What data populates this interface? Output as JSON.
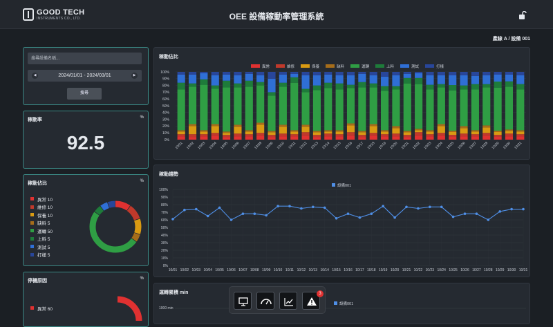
{
  "header": {
    "logo_title": "GOOD TECH",
    "logo_sub": "INSTRUMENTS CO., LTD.",
    "title": "OEE 設備稼動率管理系統"
  },
  "breadcrumb": "產線 A / 設備 001",
  "filter": {
    "search_placeholder": "搜尋設備名稱...",
    "date_range": "2024/01/01 - 2024/03/01",
    "search_button": "搜尋",
    "prev_icon": "chevron-left-icon",
    "next_icon": "chevron-right-icon"
  },
  "rate_panel": {
    "title": "稼動率",
    "unit": "%",
    "value": "92.5"
  },
  "ratio_panel": {
    "title": "稼動佔比",
    "unit": "%",
    "items": [
      {
        "label": "異常",
        "value": "10",
        "color": "#e03131"
      },
      {
        "label": "維修",
        "value": "10",
        "color": "#c0392b"
      },
      {
        "label": "保養",
        "value": "10",
        "color": "#d99a12"
      },
      {
        "label": "缺料",
        "value": "5",
        "color": "#a66d1a"
      },
      {
        "label": "運轉",
        "value": "50",
        "color": "#2f9e44"
      },
      {
        "label": "上料",
        "value": "5",
        "color": "#1e7b3a"
      },
      {
        "label": "測試",
        "value": "5",
        "color": "#2f6fd6"
      },
      {
        "label": "打樣",
        "value": "5",
        "color": "#28469a"
      }
    ]
  },
  "stop_panel": {
    "title": "停機原因",
    "unit": "%",
    "items": [
      {
        "label": "異常",
        "value": "60",
        "color": "#e03131"
      }
    ]
  },
  "dock": {
    "badge": "3",
    "icons": [
      "monitor-icon",
      "gauge-icon",
      "trend-chart-icon",
      "alert-icon"
    ]
  },
  "chart_data": [
    {
      "type": "bar",
      "title": "稼動佔比",
      "categories": [
        "10/01",
        "10/02",
        "10/03",
        "10/04",
        "10/05",
        "10/06",
        "10/07",
        "10/08",
        "10/09",
        "10/10",
        "10/11",
        "10/12",
        "10/13",
        "10/14",
        "10/15",
        "10/16",
        "10/17",
        "10/18",
        "10/19",
        "10/20",
        "10/21",
        "10/22",
        "10/23",
        "10/24",
        "10/25",
        "10/26",
        "10/27",
        "10/28",
        "10/29",
        "10/30",
        "10/31"
      ],
      "ylim": [
        0,
        100
      ],
      "yticks": [
        "0%",
        "10%",
        "20%",
        "30%",
        "40%",
        "50%",
        "60%",
        "70%",
        "80%",
        "90%",
        "100%"
      ],
      "series": [
        {
          "name": "異常",
          "color": "#e03131",
          "values": [
            5,
            4,
            5,
            6,
            4,
            5,
            5,
            6,
            4,
            5,
            5,
            6,
            4,
            5,
            5,
            6,
            4,
            6,
            5,
            5,
            4,
            6,
            5,
            6,
            4,
            5,
            5,
            6,
            4,
            5,
            5
          ]
        },
        {
          "name": "維修",
          "color": "#c0392b",
          "values": [
            3,
            4,
            3,
            4,
            3,
            4,
            3,
            4,
            3,
            4,
            3,
            5,
            3,
            4,
            3,
            5,
            3,
            4,
            3,
            4,
            3,
            5,
            3,
            4,
            3,
            4,
            3,
            4,
            3,
            4,
            3
          ]
        },
        {
          "name": "保養",
          "color": "#d99a12",
          "values": [
            4,
            12,
            4,
            10,
            3,
            10,
            4,
            12,
            4,
            10,
            4,
            8,
            4,
            3,
            4,
            10,
            4,
            10,
            4,
            8,
            4,
            3,
            4,
            10,
            4,
            8,
            4,
            8,
            4,
            4,
            4
          ]
        },
        {
          "name": "缺料",
          "color": "#a66d1a",
          "values": [
            2,
            3,
            2,
            3,
            2,
            3,
            2,
            3,
            2,
            3,
            2,
            3,
            2,
            2,
            2,
            3,
            2,
            3,
            2,
            3,
            2,
            2,
            2,
            3,
            2,
            3,
            2,
            3,
            2,
            2,
            2
          ]
        },
        {
          "name": "運轉",
          "color": "#2f9e44",
          "values": [
            60,
            55,
            67,
            52,
            65,
            55,
            64,
            55,
            52,
            56,
            70,
            48,
            60,
            62,
            60,
            52,
            64,
            54,
            58,
            54,
            70,
            66,
            60,
            54,
            58,
            54,
            60,
            56,
            62,
            63,
            60
          ]
        },
        {
          "name": "上料",
          "color": "#1e7b3a",
          "values": [
            10,
            5,
            8,
            5,
            10,
            6,
            9,
            5,
            5,
            6,
            8,
            5,
            7,
            8,
            9,
            5,
            8,
            6,
            7,
            5,
            8,
            9,
            7,
            5,
            8,
            6,
            8,
            5,
            9,
            8,
            8
          ]
        },
        {
          "name": "測試",
          "color": "#2f6fd6",
          "values": [
            12,
            13,
            9,
            15,
            9,
            12,
            10,
            10,
            20,
            12,
            5,
            20,
            15,
            12,
            12,
            14,
            12,
            12,
            14,
            16,
            6,
            7,
            14,
            13,
            14,
            15,
            12,
            13,
            10,
            10,
            13
          ]
        },
        {
          "name": "打樣",
          "color": "#28469a",
          "values": [
            4,
            4,
            2,
            5,
            4,
            5,
            3,
            5,
            10,
            4,
            3,
            5,
            5,
            4,
            5,
            5,
            3,
            5,
            7,
            5,
            3,
            2,
            5,
            5,
            5,
            5,
            6,
            5,
            4,
            4,
            5
          ]
        }
      ]
    },
    {
      "type": "line",
      "title": "稼動趨勢",
      "x": [
        "10/01",
        "10/02",
        "10/03",
        "10/04",
        "10/05",
        "10/06",
        "10/07",
        "10/08",
        "10/09",
        "10/10",
        "10/11",
        "10/12",
        "10/13",
        "10/14",
        "10/15",
        "10/16",
        "10/17",
        "10/18",
        "10/19",
        "10/20",
        "10/21",
        "10/22",
        "10/23",
        "10/24",
        "10/25",
        "10/26",
        "10/27",
        "10/28",
        "10/29",
        "10/30",
        "10/31"
      ],
      "ylim": [
        0,
        100
      ],
      "yticks": [
        "0%",
        "10%",
        "20%",
        "30%",
        "40%",
        "50%",
        "60%",
        "70%",
        "80%",
        "90%",
        "100%"
      ],
      "series": [
        {
          "name": "設備001",
          "color": "#4f8fe6",
          "values": [
            61,
            73,
            74,
            65,
            76,
            60,
            68,
            68,
            66,
            78,
            78,
            75,
            77,
            76,
            62,
            68,
            63,
            68,
            78,
            63,
            77,
            75,
            77,
            77,
            64,
            68,
            68,
            60,
            71,
            74,
            74
          ]
        }
      ]
    },
    {
      "type": "bar",
      "title": "運轉累積 min",
      "ylabel_tick": "1000 min",
      "series": [
        {
          "name": "設備001",
          "color": "#4f8fe6"
        }
      ]
    }
  ]
}
